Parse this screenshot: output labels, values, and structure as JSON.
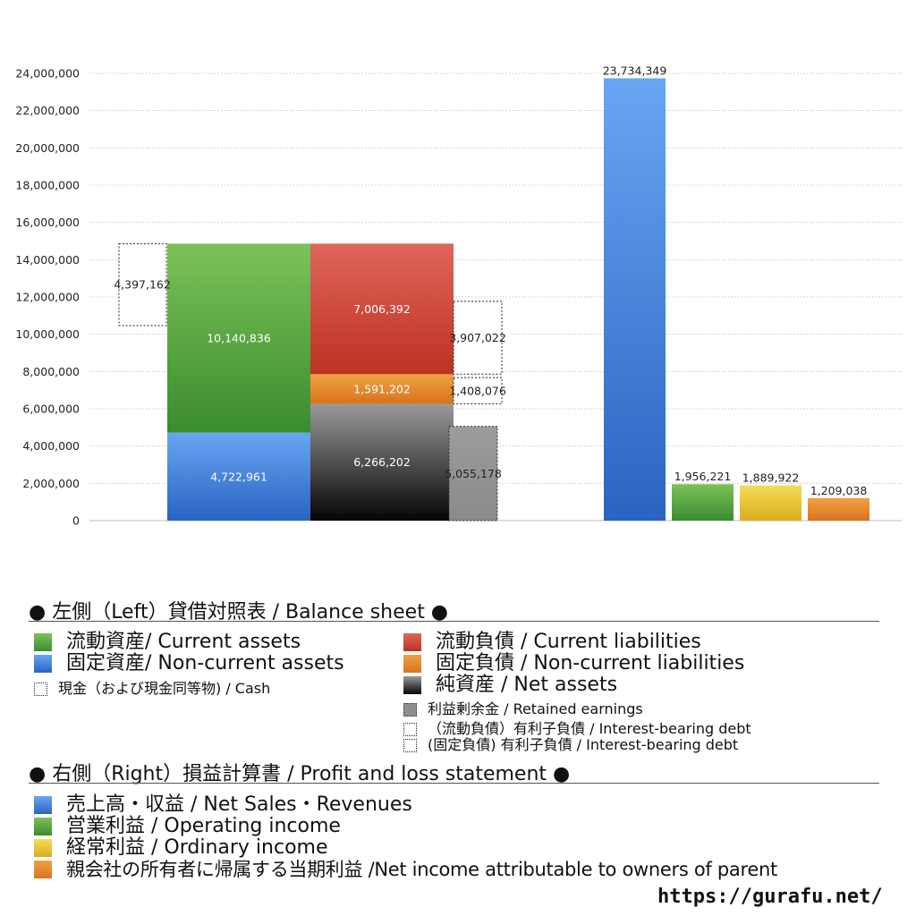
{
  "chart_data": {
    "type": "bar",
    "ylim": [
      0,
      24000000
    ],
    "yticks": [
      0,
      2000000,
      4000000,
      6000000,
      8000000,
      10000000,
      12000000,
      14000000,
      16000000,
      18000000,
      20000000,
      22000000,
      24000000
    ],
    "ytick_labels": [
      "0",
      "2,000,000",
      "4,000,000",
      "6,000,000",
      "8,000,000",
      "10,000,000",
      "12,000,000",
      "14,000,000",
      "16,000,000",
      "18,000,000",
      "20,000,000",
      "22,000,000",
      "24,000,000"
    ],
    "grid": true,
    "balance_sheet": {
      "assets": [
        {
          "key": "noncurrent_assets",
          "value": 4722961,
          "label": "4,722,961",
          "color": "#3a78d6"
        },
        {
          "key": "current_assets",
          "value": 10140836,
          "label": "10,140,836",
          "color": "#4fa43d"
        }
      ],
      "liabilities_equity": [
        {
          "key": "net_assets",
          "value": 6266202,
          "label": "6,266,202",
          "color": "#555555"
        },
        {
          "key": "noncurrent_liabilities",
          "value": 1591202,
          "label": "1,591,202",
          "color": "#e28a2e"
        },
        {
          "key": "current_liabilities",
          "value": 7006392,
          "label": "7,006,392",
          "color": "#d24a36"
        }
      ],
      "cash": {
        "value": 4397162,
        "label": "4,397,162"
      },
      "retained_earnings": {
        "value": 5055178,
        "label": "5,055,178"
      },
      "interest_bearing_debt_current": {
        "value": 3907022,
        "label": "3,907,022"
      },
      "interest_bearing_debt_noncurrent": {
        "value": 1408076,
        "label": "1,408,076"
      }
    },
    "profit_and_loss": [
      {
        "key": "revenues",
        "value": 23734349,
        "label": "23,734,349",
        "color": "#3a78d6"
      },
      {
        "key": "operating_income",
        "value": 1956221,
        "label": "1,956,221",
        "color": "#4fa43d"
      },
      {
        "key": "ordinary_income",
        "value": 1889922,
        "label": "1,889,922",
        "color": "#e0c231"
      },
      {
        "key": "net_income",
        "value": 1209038,
        "label": "1,209,038",
        "color": "#e27a28"
      }
    ]
  },
  "legend": {
    "left_title": "● 左側（Left）貸借対照表 / Balance sheet ●",
    "current_assets": "流動資産/ Current assets",
    "noncurrent_assets": "固定資産/ Non-current assets",
    "cash": "現金（および現金同等物) / Cash",
    "current_liabilities": "流動負債 /  Current liabilities",
    "noncurrent_liabilities": "固定負債 / Non-current liabilities",
    "net_assets": "純資産 / Net assets",
    "retained_earnings": "利益剰余金 / Retained earnings",
    "ibd_current": "（流動負債）有利子負債 / Interest-bearing debt",
    "ibd_noncurrent": "(固定負債) 有利子負債 / Interest-bearing debt",
    "right_title": "● 右側（Right）損益計算書 / Profit and loss statement ●",
    "revenues": "売上高・収益 / Net Sales・Revenues",
    "operating_income": "営業利益 / Operating income",
    "ordinary_income": "経常利益 / Ordinary income",
    "net_income": "親会社の所有者に帰属する当期利益 /Net income attributable to owners of parent"
  },
  "footer": {
    "url": "https://gurafu.net/"
  }
}
